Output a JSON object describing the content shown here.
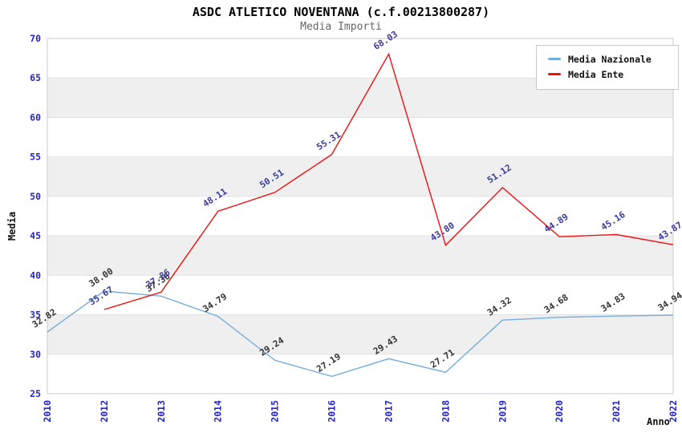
{
  "chart_data": {
    "type": "line",
    "title": "ASDC ATLETICO NOVENTANA (c.f.00213800287)",
    "subtitle": "Media Importi",
    "xlabel": "Anno",
    "ylabel": "Media",
    "categories": [
      "2010",
      "2012",
      "2013",
      "2014",
      "2015",
      "2016",
      "2017",
      "2018",
      "2019",
      "2020",
      "2021",
      "2022"
    ],
    "ylim": [
      25,
      70
    ],
    "yticks": [
      25,
      30,
      35,
      40,
      45,
      50,
      55,
      60,
      65,
      70
    ],
    "grid": "horizontal",
    "band_colors": [
      "#ffffff",
      "#efefef"
    ],
    "gridline_color": "#e2e2e2",
    "frame_color": "#cbcbcb",
    "axis_tick_label_color": "#2424cc",
    "legend_position": "top-right",
    "series": [
      {
        "name": "Media Nazionale",
        "color": "#74aede",
        "label_color": "#333333",
        "values": [
          32.82,
          38.0,
          37.36,
          34.79,
          29.24,
          27.19,
          29.43,
          27.71,
          34.32,
          34.68,
          34.83,
          34.94
        ]
      },
      {
        "name": "Media Ente",
        "color": "#ee1111",
        "label_color": "#3b3b99",
        "values": [
          null,
          35.67,
          37.86,
          48.11,
          50.51,
          55.31,
          68.03,
          43.8,
          51.12,
          44.89,
          45.16,
          43.87
        ]
      }
    ]
  }
}
